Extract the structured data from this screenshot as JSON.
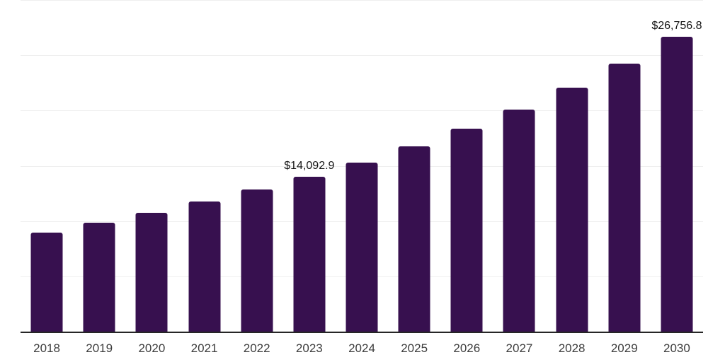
{
  "chart_data": {
    "type": "bar",
    "title": "",
    "xlabel": "",
    "ylabel": "",
    "categories": [
      "2018",
      "2019",
      "2020",
      "2021",
      "2022",
      "2023",
      "2024",
      "2025",
      "2026",
      "2027",
      "2028",
      "2029",
      "2030"
    ],
    "values": [
      9020,
      9910,
      10810,
      11860,
      12920,
      14092.9,
      15380,
      16850,
      18420,
      20170,
      22150,
      24300,
      26756.8
    ],
    "data_labels": [
      "",
      "",
      "",
      "",
      "",
      "$14,092.9",
      "",
      "",
      "",
      "",
      "",
      "",
      "$26,756.8"
    ],
    "ylim": [
      0,
      30000
    ],
    "gridline_step": 5000,
    "grid": "horizontal-only",
    "y_axis_labels": "none",
    "legend": "none"
  },
  "style": {
    "bar_color": "#37104F",
    "gridline_color": "#efefef",
    "axis_color": "#262626",
    "tick_label_color": "#3d3d3d",
    "data_label_color": "#141414",
    "background": "#ffffff"
  }
}
